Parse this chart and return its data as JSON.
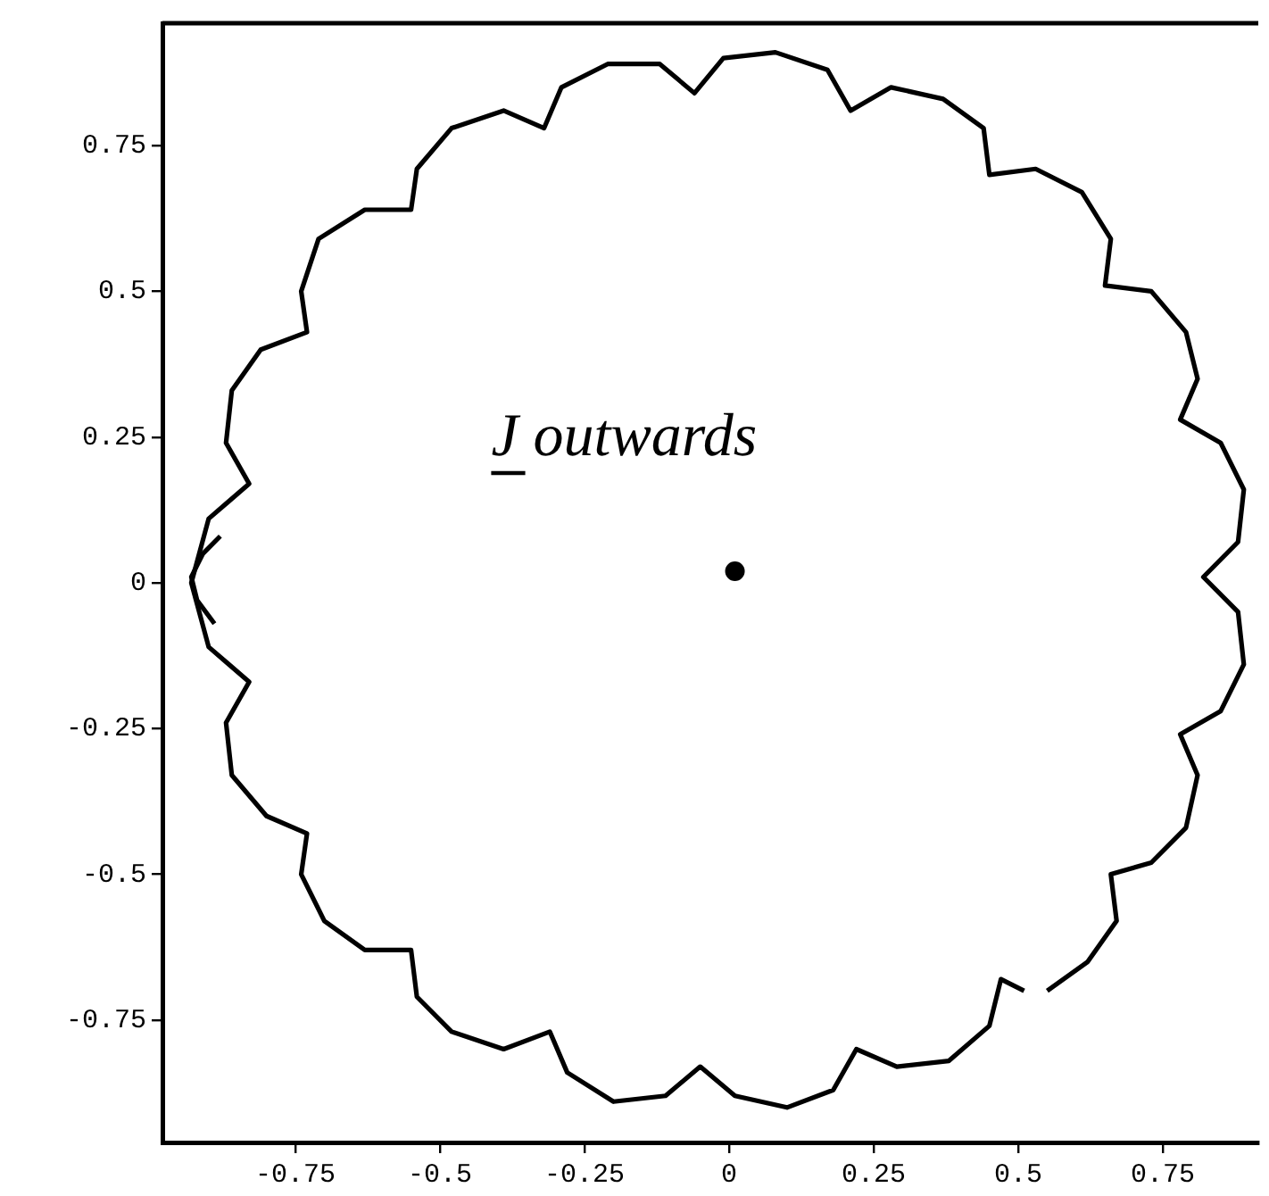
{
  "chart_data": {
    "type": "line",
    "xlim": [
      -0.98,
      0.915
    ],
    "ylim": [
      -0.96,
      0.96
    ],
    "xticks": [
      -0.75,
      -0.5,
      -0.25,
      0,
      0.25,
      0.5,
      0.75
    ],
    "yticks": [
      -0.75,
      -0.5,
      -0.25,
      0,
      0.25,
      0.5,
      0.75
    ],
    "grid": false,
    "legend": false,
    "marker": "none",
    "line_style": "solid",
    "annotations": [
      "J outwards"
    ],
    "series": [
      {
        "color": "#000000",
        "x": [
          0.55,
          0.62,
          0.67,
          0.66,
          0.73,
          0.79,
          0.81,
          0.78,
          0.85,
          0.89,
          0.88,
          0.82,
          0.88,
          0.89,
          0.85,
          0.78,
          0.81,
          0.79,
          0.73,
          0.65,
          0.66,
          0.61,
          0.53,
          0.45,
          0.44,
          0.37,
          0.28,
          0.21,
          0.17,
          0.08,
          -0.01,
          -0.06,
          -0.12,
          -0.21,
          -0.29,
          -0.32,
          -0.39,
          -0.48,
          -0.54,
          -0.55,
          -0.63,
          -0.71,
          -0.74,
          -0.73,
          -0.81,
          -0.86,
          -0.87,
          -0.83,
          -0.9,
          -0.93,
          -0.9,
          -0.83,
          -0.87,
          -0.86,
          -0.8,
          -0.73,
          -0.74,
          -0.7,
          -0.63,
          -0.55,
          -0.54,
          -0.48,
          -0.39,
          -0.31,
          -0.28,
          -0.2,
          -0.11,
          -0.05,
          0.01,
          0.1,
          0.18,
          0.22,
          0.29,
          0.38,
          0.45,
          0.47,
          0.51
        ],
        "values": [
          -0.7,
          -0.65,
          -0.58,
          -0.5,
          -0.48,
          -0.42,
          -0.33,
          -0.26,
          -0.22,
          -0.14,
          -0.05,
          0.01,
          0.07,
          0.16,
          0.24,
          0.28,
          0.35,
          0.43,
          0.5,
          0.51,
          0.59,
          0.67,
          0.71,
          0.7,
          0.78,
          0.83,
          0.85,
          0.81,
          0.88,
          0.91,
          0.9,
          0.84,
          0.89,
          0.89,
          0.85,
          0.78,
          0.81,
          0.78,
          0.71,
          0.64,
          0.64,
          0.59,
          0.5,
          0.43,
          0.4,
          0.33,
          0.24,
          0.17,
          0.11,
          0,
          -0.11,
          -0.17,
          -0.24,
          -0.33,
          -0.4,
          -0.43,
          -0.5,
          -0.58,
          -0.63,
          -0.63,
          -0.71,
          -0.77,
          -0.8,
          -0.77,
          -0.84,
          -0.89,
          -0.88,
          -0.83,
          -0.88,
          -0.9,
          -0.87,
          -0.8,
          -0.83,
          -0.82,
          -0.76,
          -0.68,
          -0.7
        ]
      },
      {
        "color": "#000000",
        "x": [
          -0.88,
          -0.91,
          -0.93,
          -0.92,
          -0.89
        ],
        "values": [
          0.08,
          0.05,
          0.01,
          -0.03,
          -0.07
        ]
      },
      {
        "type": "scatter",
        "color": "#000000",
        "marker": "circle",
        "x": [
          0.01
        ],
        "values": [
          0.02
        ]
      }
    ]
  }
}
